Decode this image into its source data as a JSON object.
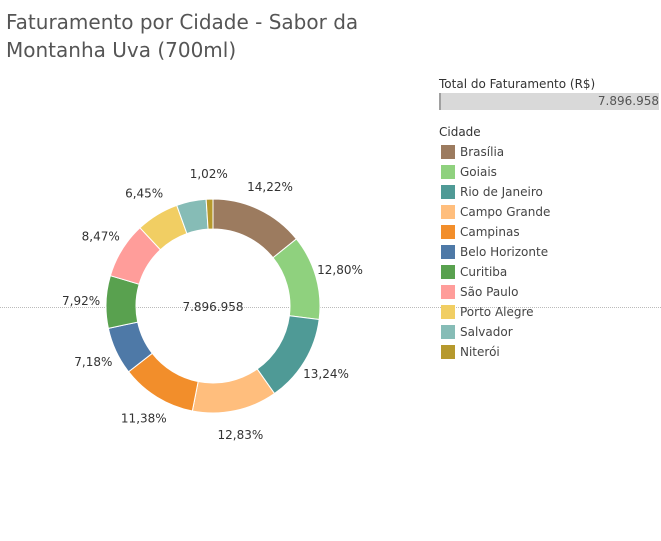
{
  "title": "Faturamento por Cidade - Sabor da Montanha Uva (700ml)",
  "total": {
    "label": "Total do Faturamento (R$)",
    "value": "7.896.958"
  },
  "legend_title": "Cidade",
  "chart_data": {
    "type": "pie",
    "variant": "donut",
    "center_label": "7.896.958",
    "categories": [
      "Brasília",
      "Goiais",
      "Rio de Janeiro",
      "Campo Grande",
      "Campinas",
      "Belo Horizonte",
      "Curitiba",
      "São Paulo",
      "Porto Alegre",
      "Salvador",
      "Niterói"
    ],
    "values": [
      14.22,
      12.8,
      13.24,
      12.83,
      11.38,
      7.18,
      7.92,
      8.47,
      6.45,
      4.49,
      1.02
    ],
    "labels": [
      "14,22%",
      "12,80%",
      "13,24%",
      "12,83%",
      "11,38%",
      "7,18%",
      "7,92%",
      "8,47%",
      "6,45%",
      "",
      "1,02%"
    ],
    "colors": [
      "#9c7b5f",
      "#8fd17e",
      "#4f9a96",
      "#ffbe7d",
      "#f28e2b",
      "#4e79a7",
      "#59a14f",
      "#ff9d9a",
      "#f1ce63",
      "#86bcb6",
      "#b6992d"
    ],
    "legend_position": "right"
  }
}
